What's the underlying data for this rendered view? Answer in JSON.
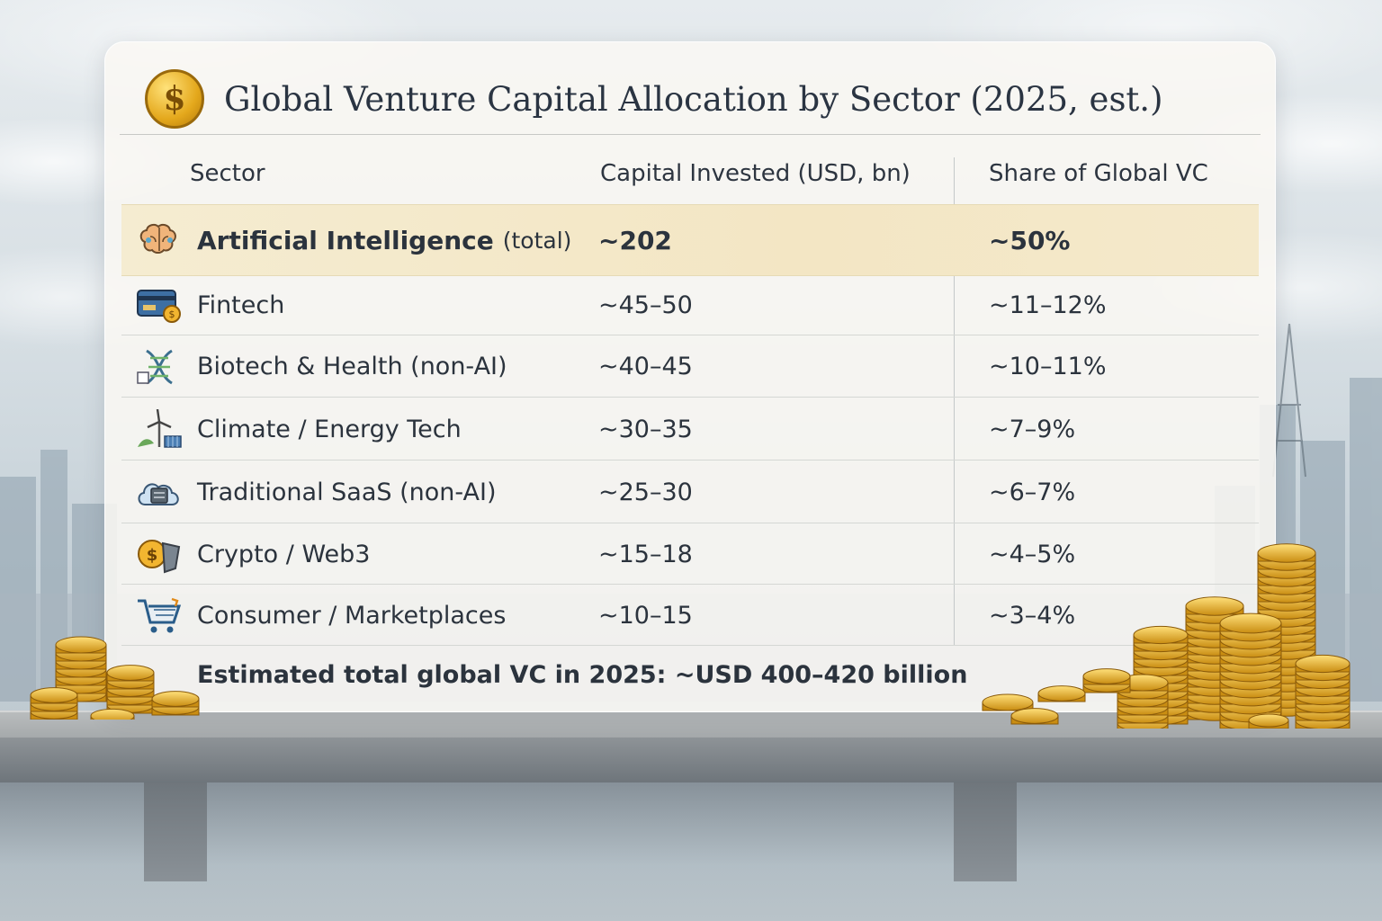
{
  "chart_data": {
    "type": "table",
    "title": "Global Venture Capital Allocation by Sector (2025, est.)",
    "columns": [
      "Sector",
      "Capital Invested (USD, bn)",
      "Share of Global VC"
    ],
    "rows": [
      {
        "icon": "brain-icon",
        "sector": "Artificial Intelligence",
        "qualifier": "(total)",
        "capital": "~202",
        "share": "~50%",
        "highlighted": true
      },
      {
        "icon": "credit-card-icon",
        "sector": "Fintech",
        "capital": "~45–50",
        "share": "~11–12%"
      },
      {
        "icon": "dna-icon",
        "sector": "Biotech & Health (non-AI)",
        "capital": "~40–45",
        "share": "~10–11%"
      },
      {
        "icon": "wind-turbine-icon",
        "sector": "Climate / Energy Tech",
        "capital": "~30–35",
        "share": "~7–9%"
      },
      {
        "icon": "cloud-server-icon",
        "sector": "Traditional SaaS (non-AI)",
        "capital": "~25–30",
        "share": "~6–7%"
      },
      {
        "icon": "crypto-coin-icon",
        "sector": "Crypto / Web3",
        "capital": "~15–18",
        "share": "~4–5%"
      },
      {
        "icon": "shopping-cart-icon",
        "sector": "Consumer / Marketplaces",
        "capital": "~10–15",
        "share": "~3–4%"
      }
    ],
    "footnote": "Estimated total global VC in 2025: ~USD 400–420 billion"
  },
  "title_icon": {
    "name": "dollar-coin-icon",
    "glyph": "$"
  },
  "colors": {
    "highlight_row": "#f4e8c8",
    "text": "#2b333d",
    "gold": "#e4a81c"
  }
}
